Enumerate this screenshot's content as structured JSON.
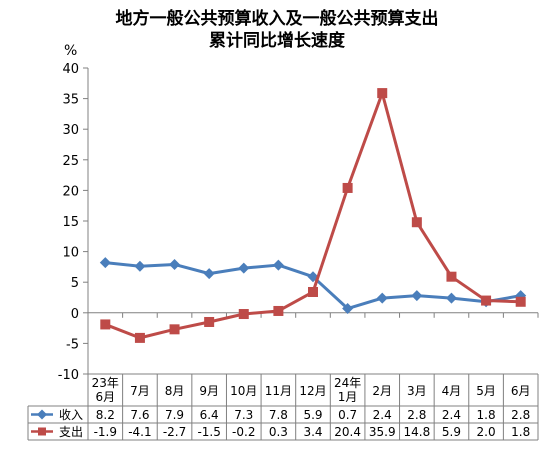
{
  "chart_data": {
    "type": "line",
    "title_lines": [
      "地方一般公共预算收入及一般公共预算支出",
      "累计同比增长速度"
    ],
    "ylabel": "%",
    "ylim": [
      -10,
      40
    ],
    "yticks": [
      -10,
      -5,
      0,
      5,
      10,
      15,
      20,
      25,
      30,
      35,
      40
    ],
    "grid": false,
    "legend": "table-below",
    "categories": [
      [
        "23年",
        "6月"
      ],
      [
        "7月"
      ],
      [
        "8月"
      ],
      [
        "9月"
      ],
      [
        "10月"
      ],
      [
        "11月"
      ],
      [
        "12月"
      ],
      [
        "24年",
        "1月"
      ],
      [
        "2月"
      ],
      [
        "3月"
      ],
      [
        "4月"
      ],
      [
        "5月"
      ],
      [
        "6月"
      ]
    ],
    "series": [
      {
        "name": "收入",
        "color": "#4a7ebb",
        "marker": "diamond",
        "values": [
          8.2,
          7.6,
          7.9,
          6.4,
          7.3,
          7.8,
          5.9,
          0.7,
          2.4,
          2.8,
          2.4,
          1.8,
          2.8
        ]
      },
      {
        "name": "支出",
        "color": "#be4b48",
        "marker": "square",
        "values": [
          -1.9,
          -4.1,
          -2.7,
          -1.5,
          -0.2,
          0.3,
          3.4,
          20.4,
          35.9,
          14.8,
          5.9,
          2.0,
          1.8
        ]
      }
    ]
  }
}
